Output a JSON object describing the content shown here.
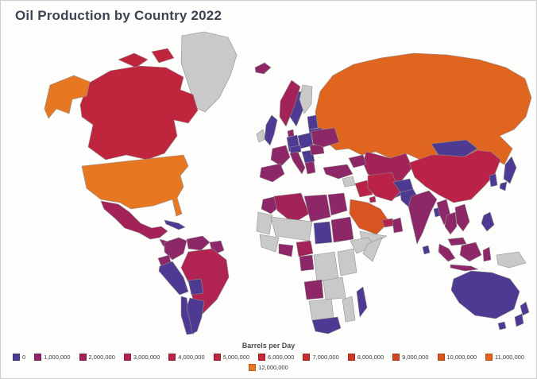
{
  "title": "Oil Production by Country 2022",
  "legend": {
    "title": "Barrels per Day",
    "rows": [
      [
        {
          "label": "0",
          "color": "#4f3a93"
        },
        {
          "label": "1,000,000",
          "color": "#8d2767"
        },
        {
          "label": "2,000,000",
          "color": "#a32257"
        },
        {
          "label": "3,000,000",
          "color": "#b12350"
        },
        {
          "label": "4,000,000",
          "color": "#ba2347"
        },
        {
          "label": "5,000,000",
          "color": "#c0253e"
        },
        {
          "label": "6,000,000",
          "color": "#c52836"
        },
        {
          "label": "7,000,000",
          "color": "#c92d2e"
        },
        {
          "label": "8,000,000",
          "color": "#cd3628"
        },
        {
          "label": "9,000,000",
          "color": "#d24423"
        },
        {
          "label": "10,000,000",
          "color": "#d85420"
        },
        {
          "label": "11,000,000",
          "color": "#e0661f"
        }
      ],
      [
        {
          "label": "12,000,000",
          "color": "#e87722"
        }
      ]
    ]
  },
  "chart_data": {
    "type": "choropleth_map",
    "title": "Oil Production by Country 2022",
    "legend_title": "Barrels per Day",
    "unit": "barrels per day",
    "scale": {
      "min": 0,
      "max": 12000000,
      "step": 1000000
    },
    "no_data_color": "#c9c9c9",
    "bins": [
      {
        "threshold": 0,
        "color": "#4f3a93"
      },
      {
        "threshold": 1000000,
        "color": "#8d2767"
      },
      {
        "threshold": 2000000,
        "color": "#a32257"
      },
      {
        "threshold": 3000000,
        "color": "#b12350"
      },
      {
        "threshold": 4000000,
        "color": "#ba2347"
      },
      {
        "threshold": 5000000,
        "color": "#c0253e"
      },
      {
        "threshold": 6000000,
        "color": "#c52836"
      },
      {
        "threshold": 7000000,
        "color": "#c92d2e"
      },
      {
        "threshold": 8000000,
        "color": "#cd3628"
      },
      {
        "threshold": 9000000,
        "color": "#d24423"
      },
      {
        "threshold": 10000000,
        "color": "#d85420"
      },
      {
        "threshold": 11000000,
        "color": "#e0661f"
      },
      {
        "threshold": 12000000,
        "color": "#e87722"
      }
    ],
    "countries": {
      "usa": {
        "name": "United States",
        "barrels_per_day_approx": 11900000,
        "color": "#e87722"
      },
      "canada": {
        "name": "Canada",
        "barrels_per_day_approx": 4900000,
        "color": "#c0253e"
      },
      "mexico": {
        "name": "Mexico",
        "barrels_per_day_approx": 1900000,
        "color": "#a32257"
      },
      "centralamerica": {
        "name": "Central America",
        "barrels_per_day_approx": null,
        "color": "#8d2767"
      },
      "cuba": {
        "name": "Cuba",
        "barrels_per_day_approx": null,
        "color": "#4f3a93"
      },
      "colombia": {
        "name": "Colombia",
        "barrels_per_day_approx": 750000,
        "color": "#8d2767"
      },
      "venezuela": {
        "name": "Venezuela",
        "barrels_per_day_approx": 700000,
        "color": "#8d2767"
      },
      "guyana": {
        "name": "Guyana",
        "barrels_per_day_approx": 280000,
        "color": "#8d2767"
      },
      "ecuador": {
        "name": "Ecuador",
        "barrels_per_day_approx": 480000,
        "color": "#8d2767"
      },
      "peru": {
        "name": "Peru",
        "barrels_per_day_approx": null,
        "color": "#4f3a93"
      },
      "brazil": {
        "name": "Brazil",
        "barrels_per_day_approx": 3000000,
        "color": "#b12350"
      },
      "bolivia": {
        "name": "Bolivia",
        "barrels_per_day_approx": null,
        "color": "#4f3a93"
      },
      "chile": {
        "name": "Chile",
        "barrels_per_day_approx": null,
        "color": "#4f3a93"
      },
      "argentina": {
        "name": "Argentina",
        "barrels_per_day_approx": 620000,
        "color": "#4f3a93"
      },
      "iceland": {
        "name": "Iceland",
        "barrels_per_day_approx": null,
        "color": "#8d2767"
      },
      "uk": {
        "name": "United Kingdom",
        "barrels_per_day_approx": 780000,
        "color": "#4f3a93"
      },
      "norway": {
        "name": "Norway",
        "barrels_per_day_approx": 1700000,
        "color": "#a32257"
      },
      "sweden": {
        "name": "Sweden",
        "barrels_per_day_approx": null,
        "color": "#4f3a93"
      },
      "denmark": {
        "name": "Denmark",
        "barrels_per_day_approx": null,
        "color": "#8d2767"
      },
      "baltics": {
        "name": "Baltic states",
        "barrels_per_day_approx": null,
        "color": "#4f3a93"
      },
      "belarus": {
        "name": "Belarus",
        "barrels_per_day_approx": null,
        "color": "#4f3a93"
      },
      "poland": {
        "name": "Poland",
        "barrels_per_day_approx": null,
        "color": "#4f3a93"
      },
      "germany": {
        "name": "Germany",
        "barrels_per_day_approx": null,
        "color": "#4f3a93"
      },
      "france": {
        "name": "France",
        "barrels_per_day_approx": null,
        "color": "#8d2767"
      },
      "spain": {
        "name": "Spain",
        "barrels_per_day_approx": null,
        "color": "#8d2767"
      },
      "italy": {
        "name": "Italy",
        "barrels_per_day_approx": null,
        "color": "#8d2767"
      },
      "austria": {
        "name": "Austria",
        "barrels_per_day_approx": null,
        "color": "#4f3a93"
      },
      "balkans": {
        "name": "Balkans",
        "barrels_per_day_approx": null,
        "color": "#4f3a93"
      },
      "greece": {
        "name": "Greece",
        "barrels_per_day_approx": null,
        "color": "#8d2767"
      },
      "romania": {
        "name": "Romania",
        "barrels_per_day_approx": null,
        "color": "#8d2767"
      },
      "ukraine": {
        "name": "Ukraine",
        "barrels_per_day_approx": null,
        "color": "#8d2767"
      },
      "russia": {
        "name": "Russia",
        "barrels_per_day_approx": 10900000,
        "color": "#e0661f"
      },
      "kazakhstan": {
        "name": "Kazakhstan",
        "barrels_per_day_approx": 1800000,
        "color": "#a32257"
      },
      "centralasia": {
        "name": "Turkmenistan/Uzbekistan",
        "barrels_per_day_approx": 250000,
        "color": "#4f3a93"
      },
      "caucasus": {
        "name": "Azerbaijan",
        "barrels_per_day_approx": 680000,
        "color": "#8d2767"
      },
      "turkey": {
        "name": "Turkey",
        "barrels_per_day_approx": null,
        "color": "#8d2767"
      },
      "iraq": {
        "name": "Iraq",
        "barrels_per_day_approx": 4450000,
        "color": "#ba2347"
      },
      "iran": {
        "name": "Iran",
        "barrels_per_day_approx": 3800000,
        "color": "#ba2347"
      },
      "kuwait": {
        "name": "Kuwait",
        "barrels_per_day_approx": 2700000,
        "color": "#b12350"
      },
      "saudi": {
        "name": "Saudi Arabia",
        "barrels_per_day_approx": 10400000,
        "color": "#d85420"
      },
      "uae": {
        "name": "United Arab Emirates",
        "barrels_per_day_approx": 3200000,
        "color": "#b12350"
      },
      "oman": {
        "name": "Oman",
        "barrels_per_day_approx": 1000000,
        "color": "#8d2767"
      },
      "afghanistan": {
        "name": "Afghanistan",
        "barrels_per_day_approx": null,
        "color": "#4f3a93"
      },
      "pakistan": {
        "name": "Pakistan",
        "barrels_per_day_approx": null,
        "color": "#4f3a93"
      },
      "india": {
        "name": "India",
        "barrels_per_day_approx": 700000,
        "color": "#8d2767"
      },
      "srilanka": {
        "name": "Sri Lanka",
        "barrels_per_day_approx": null,
        "color": "#4f3a93"
      },
      "bangladesh": {
        "name": "Bangladesh",
        "barrels_per_day_approx": null,
        "color": "#4f3a93"
      },
      "china": {
        "name": "China",
        "barrels_per_day_approx": 4100000,
        "color": "#ba2347"
      },
      "mongolia": {
        "name": "Mongolia",
        "barrels_per_day_approx": null,
        "color": "#4f3a93"
      },
      "korea": {
        "name": "South Korea",
        "barrels_per_day_approx": null,
        "color": "#4f3a93"
      },
      "japan": {
        "name": "Japan",
        "barrels_per_day_approx": null,
        "color": "#4f3a93"
      },
      "myanmar": {
        "name": "Myanmar",
        "barrels_per_day_approx": null,
        "color": "#8d2767"
      },
      "thailand": {
        "name": "Thailand",
        "barrels_per_day_approx": 400000,
        "color": "#8d2767"
      },
      "vietnam": {
        "name": "Vietnam",
        "barrels_per_day_approx": null,
        "color": "#8d2767"
      },
      "malaysia": {
        "name": "Malaysia",
        "barrels_per_day_approx": 570000,
        "color": "#8d2767"
      },
      "indonesia": {
        "name": "Indonesia",
        "barrels_per_day_approx": 650000,
        "color": "#8d2767"
      },
      "philippines": {
        "name": "Philippines",
        "barrels_per_day_approx": null,
        "color": "#4f3a93"
      },
      "australia": {
        "name": "Australia",
        "barrels_per_day_approx": 420000,
        "color": "#4f3a93"
      },
      "newzealand": {
        "name": "New Zealand",
        "barrels_per_day_approx": null,
        "color": "#4f3a93"
      },
      "morocco": {
        "name": "Morocco",
        "barrels_per_day_approx": null,
        "color": "#8d2767"
      },
      "algeria": {
        "name": "Algeria",
        "barrels_per_day_approx": 1400000,
        "color": "#a32257"
      },
      "libya": {
        "name": "Libya",
        "barrels_per_day_approx": 1100000,
        "color": "#8d2767"
      },
      "egypt": {
        "name": "Egypt",
        "barrels_per_day_approx": 600000,
        "color": "#8d2767"
      },
      "sudan": {
        "name": "Sudan",
        "barrels_per_day_approx": null,
        "color": "#8d2767"
      },
      "chad": {
        "name": "Chad",
        "barrels_per_day_approx": null,
        "color": "#4f3a93"
      },
      "nigeria": {
        "name": "Nigeria",
        "barrels_per_day_approx": 1400000,
        "color": "#a32257"
      },
      "ghana": {
        "name": "Ghana",
        "barrels_per_day_approx": null,
        "color": "#8d2767"
      },
      "gabon": {
        "name": "Gabon",
        "barrels_per_day_approx": null,
        "color": "#8d2767"
      },
      "angola": {
        "name": "Angola",
        "barrels_per_day_approx": 1100000,
        "color": "#8d2767"
      },
      "southafrica": {
        "name": "South Africa",
        "barrels_per_day_approx": null,
        "color": "#4f3a93"
      },
      "madagascar": {
        "name": "Madagascar",
        "barrels_per_day_approx": null,
        "color": "#4f3a93"
      }
    }
  }
}
